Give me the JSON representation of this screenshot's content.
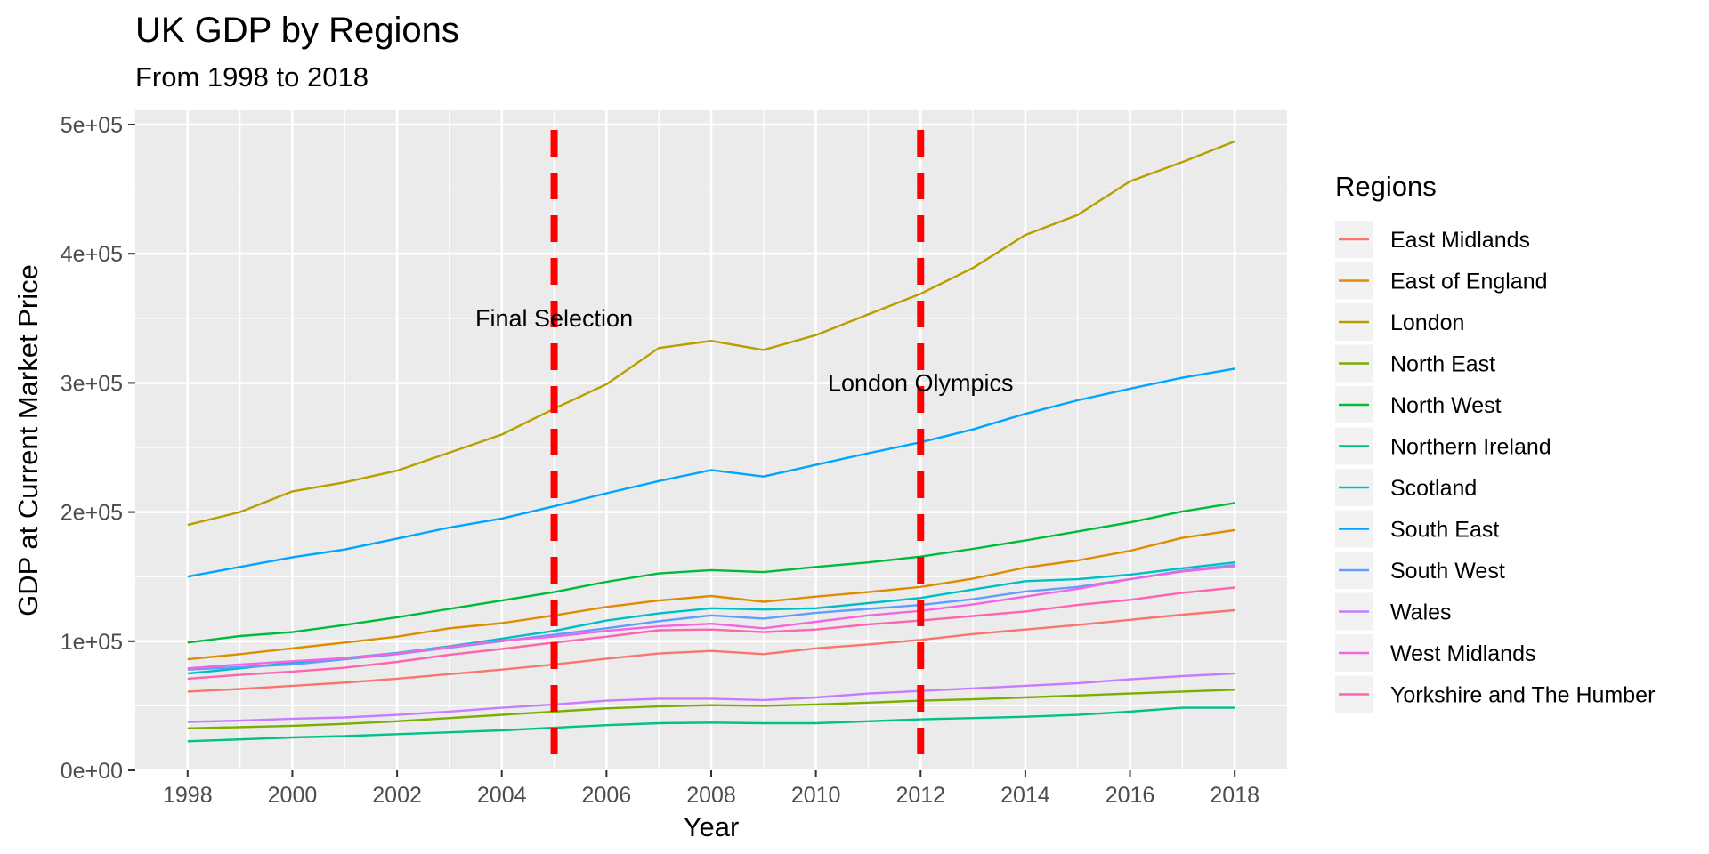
{
  "chart_data": {
    "type": "line",
    "title": "UK GDP by Regions",
    "subtitle": "From 1998 to 2018",
    "xlabel": "Year",
    "ylabel": "GDP at Current Market Price",
    "xlim": [
      1997,
      2019
    ],
    "ylim": [
      0,
      500000
    ],
    "x_ticks": [
      1998,
      2000,
      2002,
      2004,
      2006,
      2008,
      2010,
      2012,
      2014,
      2016,
      2018
    ],
    "x_tick_labels": [
      "1998",
      "2000",
      "2002",
      "2004",
      "2006",
      "2008",
      "2010",
      "2012",
      "2014",
      "2016",
      "2018"
    ],
    "y_ticks": [
      0,
      100000,
      200000,
      300000,
      400000,
      500000
    ],
    "y_tick_labels": [
      "0e+00",
      "1e+05",
      "2e+05",
      "3e+05",
      "4e+05",
      "5e+05"
    ],
    "grid": true,
    "legend": {
      "title": "Regions",
      "position": "right"
    },
    "x": [
      1998,
      1999,
      2000,
      2001,
      2002,
      2003,
      2004,
      2005,
      2006,
      2007,
      2008,
      2009,
      2010,
      2011,
      2012,
      2013,
      2014,
      2015,
      2016,
      2017,
      2018
    ],
    "series": [
      {
        "name": "East Midlands",
        "color": "#F8766D",
        "values": [
          61000,
          63000,
          65500,
          68000,
          71000,
          74500,
          78000,
          82000,
          86500,
          90500,
          92500,
          90000,
          94500,
          97500,
          101000,
          105500,
          109000,
          112500,
          116500,
          120500,
          124000
        ]
      },
      {
        "name": "East of England",
        "color": "#DE8C00",
        "values": [
          86000,
          90000,
          94500,
          99000,
          103500,
          110000,
          114000,
          120000,
          126500,
          131500,
          135000,
          130500,
          134500,
          138000,
          142000,
          148500,
          157000,
          162500,
          170000,
          180000,
          186000
        ]
      },
      {
        "name": "London",
        "color": "#B79F00",
        "values": [
          190000,
          200000,
          216000,
          223000,
          232000,
          246000,
          260000,
          280000,
          299000,
          327000,
          332500,
          325500,
          337000,
          353000,
          369000,
          389000,
          414500,
          430000,
          456000,
          471000,
          487000
        ]
      },
      {
        "name": "North East",
        "color": "#7CAE00",
        "values": [
          32500,
          33500,
          34500,
          36000,
          38000,
          40500,
          43000,
          45500,
          48000,
          49500,
          50500,
          50000,
          51000,
          52500,
          54000,
          55000,
          56500,
          58000,
          59500,
          61000,
          62500
        ]
      },
      {
        "name": "North West",
        "color": "#00BA38",
        "values": [
          99000,
          104000,
          107000,
          112500,
          118500,
          125000,
          131500,
          138000,
          146000,
          152500,
          155000,
          153500,
          157500,
          161000,
          165500,
          171500,
          178000,
          185000,
          192000,
          200500,
          207000
        ]
      },
      {
        "name": "Northern Ireland",
        "color": "#00C08B",
        "values": [
          22500,
          24000,
          25500,
          26500,
          28000,
          29500,
          31000,
          33000,
          35000,
          36500,
          37000,
          36500,
          36500,
          38000,
          39500,
          40500,
          41500,
          43000,
          45500,
          48500,
          48500
        ]
      },
      {
        "name": "Scotland",
        "color": "#00BFC4",
        "values": [
          75000,
          79000,
          83500,
          87000,
          91000,
          96000,
          102000,
          108000,
          116000,
          121500,
          125500,
          124500,
          125500,
          129500,
          133500,
          140000,
          146500,
          148000,
          151500,
          156500,
          161000
        ]
      },
      {
        "name": "South East",
        "color": "#00A5FF",
        "values": [
          150000,
          157500,
          165000,
          171000,
          179500,
          188000,
          195000,
          204500,
          214500,
          224000,
          232500,
          227500,
          236500,
          245500,
          254000,
          264000,
          276000,
          286500,
          295500,
          304000,
          311000
        ]
      },
      {
        "name": "South West",
        "color": "#619CFF",
        "values": [
          78000,
          80000,
          82000,
          86000,
          90000,
          95000,
          100000,
          105000,
          110000,
          115500,
          120000,
          117500,
          122000,
          125000,
          128000,
          132500,
          138500,
          142000,
          148000,
          154500,
          159000
        ]
      },
      {
        "name": "Wales",
        "color": "#C77CFF",
        "values": [
          37500,
          38500,
          40000,
          41000,
          43000,
          45500,
          48500,
          51000,
          54000,
          55500,
          55500,
          54500,
          56500,
          59500,
          61500,
          63500,
          65500,
          67500,
          70500,
          73000,
          75000
        ]
      },
      {
        "name": "West Midlands",
        "color": "#F564E3",
        "values": [
          79000,
          82000,
          84500,
          87000,
          90500,
          95500,
          100500,
          103500,
          108000,
          111500,
          113500,
          110000,
          115000,
          120000,
          123500,
          128500,
          134500,
          140500,
          148000,
          154000,
          158000
        ]
      },
      {
        "name": "Yorkshire and The Humber",
        "color": "#FF64B0",
        "values": [
          71000,
          74000,
          76500,
          79500,
          84000,
          89500,
          94000,
          99000,
          103500,
          108500,
          109000,
          107000,
          109000,
          113000,
          116000,
          119500,
          123000,
          128000,
          132000,
          137500,
          141500
        ]
      }
    ],
    "annotations": [
      {
        "x": 2005,
        "label": "Final Selection",
        "label_y": 350000,
        "color": "#FF0000"
      },
      {
        "x": 2012,
        "label": "London Olympics",
        "label_y": 300000,
        "color": "#FF0000"
      }
    ]
  }
}
